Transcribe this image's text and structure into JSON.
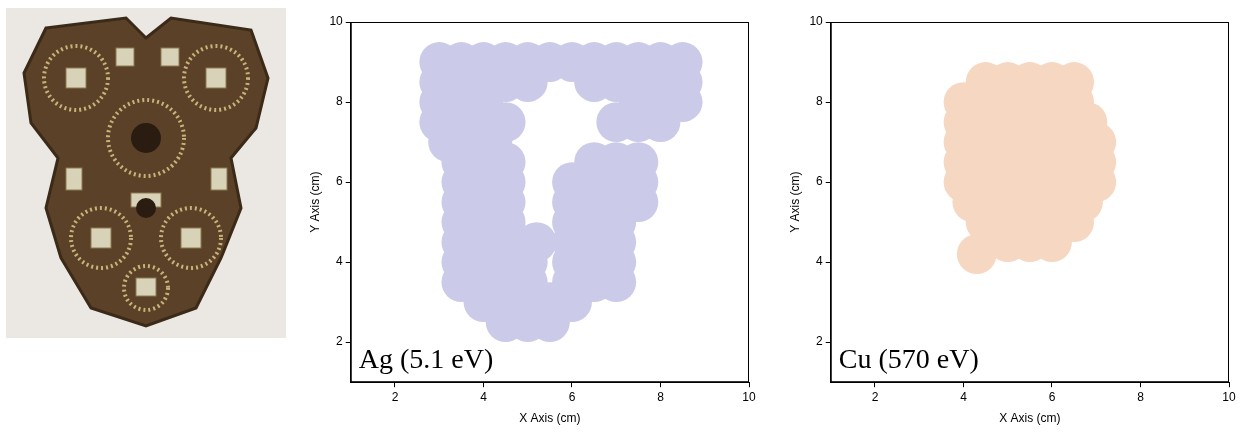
{
  "chart_data": [
    {
      "type": "heatmap",
      "annotation": "Ag (5.1 eV)",
      "x_label": "X Axis (cm)",
      "y_label": "Y Axis (cm)",
      "xlim": [
        1,
        10
      ],
      "ylim": [
        1,
        10
      ],
      "xticks": [
        2,
        4,
        6,
        8,
        10
      ],
      "yticks": [
        2,
        4,
        6,
        8,
        10
      ],
      "grid": false,
      "color": "#4646b0",
      "cells": [
        [
          3,
          9,
          1
        ],
        [
          3.5,
          9,
          1
        ],
        [
          4,
          9,
          1
        ],
        [
          4.5,
          9,
          1
        ],
        [
          5,
          9,
          1
        ],
        [
          5.5,
          9,
          1
        ],
        [
          6,
          9,
          1
        ],
        [
          6.5,
          9,
          1
        ],
        [
          7,
          9,
          1
        ],
        [
          7.5,
          9,
          1
        ],
        [
          8,
          9,
          1
        ],
        [
          8.5,
          9,
          1
        ],
        [
          3,
          8.5,
          1
        ],
        [
          3.5,
          8.5,
          1
        ],
        [
          4,
          8.5,
          1
        ],
        [
          4.5,
          8.5,
          1
        ],
        [
          5,
          8.5,
          1
        ],
        [
          6.5,
          8.5,
          1
        ],
        [
          7,
          8.5,
          1
        ],
        [
          7.5,
          8.5,
          1
        ],
        [
          8,
          8.5,
          1
        ],
        [
          8.5,
          8.5,
          1
        ],
        [
          3,
          8,
          1
        ],
        [
          3.5,
          8,
          1
        ],
        [
          4,
          8,
          1
        ],
        [
          7.5,
          8,
          1
        ],
        [
          8,
          8,
          1
        ],
        [
          8.5,
          8,
          1
        ],
        [
          3,
          7.5,
          1
        ],
        [
          3.5,
          7.5,
          1
        ],
        [
          4,
          7.5,
          1
        ],
        [
          4.5,
          7.5,
          1
        ],
        [
          7,
          7.5,
          1
        ],
        [
          7.5,
          7.5,
          1
        ],
        [
          8,
          7.5,
          1
        ],
        [
          3.2,
          7,
          1
        ],
        [
          3.7,
          7,
          1
        ],
        [
          4.2,
          7,
          1
        ],
        [
          3.5,
          6.5,
          1
        ],
        [
          4,
          6.5,
          1
        ],
        [
          4.5,
          6.5,
          1
        ],
        [
          6.5,
          6.5,
          1
        ],
        [
          7,
          6.5,
          1
        ],
        [
          7.5,
          6.5,
          1
        ],
        [
          3.5,
          6,
          1
        ],
        [
          4,
          6,
          1
        ],
        [
          4.5,
          6,
          1
        ],
        [
          6,
          6,
          1
        ],
        [
          6.5,
          6,
          1
        ],
        [
          7,
          6,
          1
        ],
        [
          7.5,
          6,
          1
        ],
        [
          3.5,
          5.5,
          1
        ],
        [
          4,
          5.5,
          1
        ],
        [
          4.5,
          5.5,
          1
        ],
        [
          6,
          5.5,
          1
        ],
        [
          6.5,
          5.5,
          1
        ],
        [
          7,
          5.5,
          1
        ],
        [
          7.5,
          5.5,
          1
        ],
        [
          3.5,
          5,
          1
        ],
        [
          4,
          5,
          1
        ],
        [
          4.5,
          5,
          1
        ],
        [
          6,
          5,
          1
        ],
        [
          6.5,
          5,
          1
        ],
        [
          7,
          5,
          1
        ],
        [
          3.5,
          4.5,
          1
        ],
        [
          4,
          4.5,
          1
        ],
        [
          4.5,
          4.5,
          1
        ],
        [
          5.2,
          4.5,
          1
        ],
        [
          6,
          4.5,
          1
        ],
        [
          6.5,
          4.5,
          1
        ],
        [
          7,
          4.5,
          1
        ],
        [
          3.5,
          4,
          1
        ],
        [
          4,
          4,
          1
        ],
        [
          4.5,
          4,
          1
        ],
        [
          5,
          4,
          1
        ],
        [
          6,
          4,
          1
        ],
        [
          6.5,
          4,
          1
        ],
        [
          7,
          4,
          1
        ],
        [
          3.5,
          3.5,
          1
        ],
        [
          4,
          3.5,
          1
        ],
        [
          4.5,
          3.5,
          1
        ],
        [
          5,
          3.5,
          1
        ],
        [
          6,
          3.5,
          1
        ],
        [
          6.5,
          3.5,
          1
        ],
        [
          7,
          3.5,
          1
        ],
        [
          4,
          3,
          1
        ],
        [
          4.5,
          3,
          1
        ],
        [
          5,
          3,
          1
        ],
        [
          5.5,
          3,
          1
        ],
        [
          6,
          3,
          1
        ],
        [
          4.5,
          2.5,
          1
        ],
        [
          5,
          2.5,
          1
        ],
        [
          5.5,
          2.5,
          1
        ],
        [
          3.5,
          9,
          3
        ],
        [
          4.7,
          9,
          3
        ],
        [
          6.4,
          9,
          3
        ],
        [
          7.7,
          8.9,
          3
        ],
        [
          3.4,
          8,
          3
        ],
        [
          7.8,
          7.9,
          3
        ],
        [
          3.8,
          6.7,
          3
        ],
        [
          7.1,
          6.2,
          3
        ],
        [
          4,
          5.2,
          3
        ],
        [
          6.6,
          4.8,
          3
        ],
        [
          3.9,
          3.8,
          3
        ],
        [
          6.4,
          3.4,
          3
        ],
        [
          5,
          2.7,
          3
        ]
      ]
    },
    {
      "type": "heatmap",
      "annotation": "Cu (570 eV)",
      "x_label": "X Axis (cm)",
      "y_label": "Y Axis (cm)",
      "xlim": [
        1,
        10
      ],
      "ylim": [
        1,
        10
      ],
      "xticks": [
        2,
        4,
        6,
        8,
        10
      ],
      "yticks": [
        2,
        4,
        6,
        8,
        10
      ],
      "grid": false,
      "color": "#e07020",
      "cells": [
        [
          4.5,
          8.5,
          1
        ],
        [
          5,
          8.5,
          1
        ],
        [
          5.5,
          8.5,
          1
        ],
        [
          6,
          8.5,
          1
        ],
        [
          6.5,
          8.5,
          1
        ],
        [
          4,
          8,
          1
        ],
        [
          4.5,
          8,
          1
        ],
        [
          5,
          8,
          1
        ],
        [
          5.5,
          8,
          1
        ],
        [
          6,
          8,
          1
        ],
        [
          6.5,
          8,
          1
        ],
        [
          4,
          7.5,
          1
        ],
        [
          4.5,
          7.5,
          1
        ],
        [
          5,
          7.5,
          1
        ],
        [
          5.5,
          7.5,
          1
        ],
        [
          6,
          7.5,
          1
        ],
        [
          6.5,
          7.5,
          1
        ],
        [
          6.8,
          7.5,
          1
        ],
        [
          4,
          7,
          1
        ],
        [
          4.5,
          7,
          1
        ],
        [
          5,
          7,
          1
        ],
        [
          5.5,
          7,
          1
        ],
        [
          6,
          7,
          1
        ],
        [
          6.5,
          7,
          1
        ],
        [
          7,
          7,
          1
        ],
        [
          4,
          6.5,
          1
        ],
        [
          4.5,
          6.5,
          1
        ],
        [
          5,
          6.5,
          1
        ],
        [
          5.5,
          6.5,
          1
        ],
        [
          6,
          6.5,
          1
        ],
        [
          6.5,
          6.5,
          1
        ],
        [
          7,
          6.5,
          1
        ],
        [
          4,
          6,
          1
        ],
        [
          4.5,
          6,
          1
        ],
        [
          5,
          6,
          1
        ],
        [
          5.5,
          6,
          1
        ],
        [
          6,
          6,
          1
        ],
        [
          6.5,
          6,
          1
        ],
        [
          7,
          6,
          1
        ],
        [
          4.2,
          5.5,
          1
        ],
        [
          4.7,
          5.5,
          1
        ],
        [
          5.2,
          5.5,
          1
        ],
        [
          5.7,
          5.5,
          1
        ],
        [
          6.2,
          5.5,
          1
        ],
        [
          6.7,
          5.5,
          1
        ],
        [
          4.5,
          5,
          1
        ],
        [
          5,
          5,
          1
        ],
        [
          5.5,
          5,
          1
        ],
        [
          6,
          5,
          1
        ],
        [
          6.5,
          5,
          1
        ],
        [
          5,
          4.5,
          1
        ],
        [
          5.5,
          4.5,
          1
        ],
        [
          6,
          4.5,
          1
        ],
        [
          4.3,
          4.2,
          1
        ],
        [
          4.8,
          7.8,
          2
        ],
        [
          5.3,
          7.9,
          2
        ],
        [
          5.8,
          7.8,
          2
        ],
        [
          6.2,
          5.7,
          2
        ],
        [
          5.3,
          7.6,
          3
        ]
      ]
    }
  ]
}
